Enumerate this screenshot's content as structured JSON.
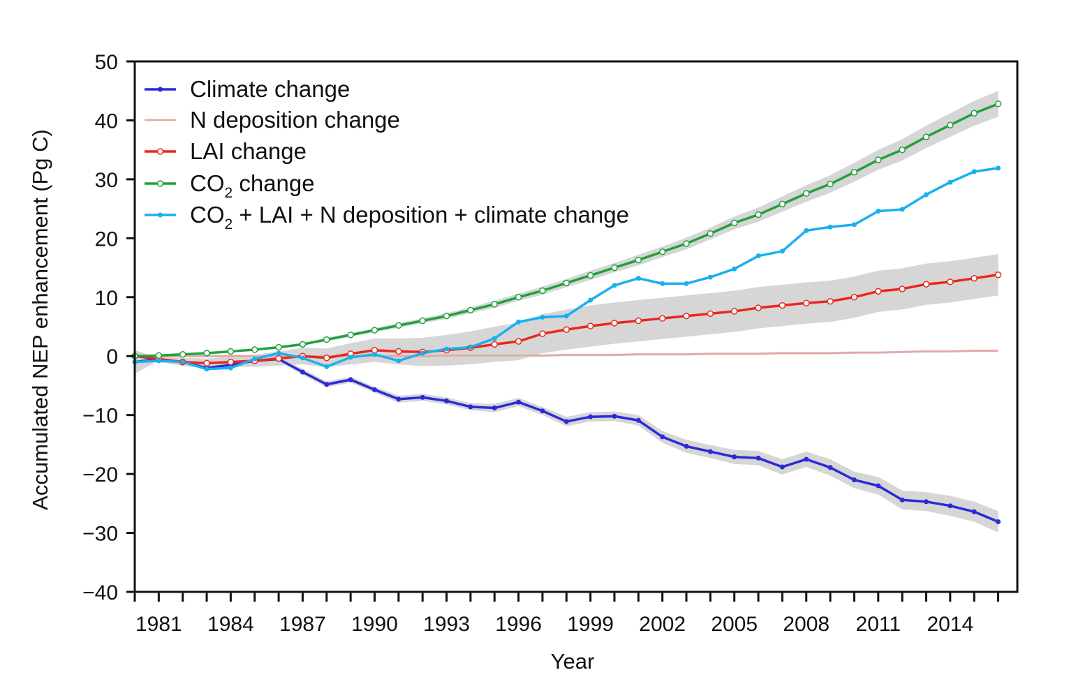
{
  "chart_data": {
    "type": "line",
    "xlabel": "Year",
    "ylabel": "Accumulated NEP enhancement (Pg C)",
    "xlim": [
      1980,
      2016.8
    ],
    "ylim": [
      -40,
      50
    ],
    "x_ticks": [
      1981,
      1984,
      1987,
      1990,
      1993,
      1996,
      1999,
      2002,
      2005,
      2008,
      2011,
      2014
    ],
    "y_ticks": [
      50,
      40,
      30,
      20,
      10,
      0,
      -10,
      -20,
      -30,
      -40
    ],
    "y_tick_labels": [
      "50",
      "40",
      "30",
      "20",
      "10",
      "0",
      "−10",
      "−20",
      "−30",
      "−40"
    ],
    "grid": false,
    "legend_position": "top-left",
    "x": [
      1980,
      1981,
      1982,
      1983,
      1984,
      1985,
      1986,
      1987,
      1988,
      1989,
      1990,
      1991,
      1992,
      1993,
      1994,
      1995,
      1996,
      1997,
      1998,
      1999,
      2000,
      2001,
      2002,
      2003,
      2004,
      2005,
      2006,
      2007,
      2008,
      2009,
      2010,
      2011,
      2012,
      2013,
      2014,
      2015,
      2016
    ],
    "series": [
      {
        "name": "Climate change",
        "color": "#2b2bd6",
        "marker": "dot",
        "values": [
          -1.0,
          -0.5,
          -1.0,
          -2.0,
          -1.5,
          -0.8,
          -0.5,
          -2.7,
          -4.8,
          -4.0,
          -5.7,
          -7.3,
          -7.0,
          -7.6,
          -8.6,
          -8.8,
          -7.8,
          -9.3,
          -11.1,
          -10.3,
          -10.2,
          -10.9,
          -13.7,
          -15.3,
          -16.2,
          -17.1,
          -17.3,
          -18.8,
          -17.5,
          -18.9,
          -21.0,
          -22.0,
          -24.4,
          -24.7,
          -25.4,
          -26.4,
          -28.1
        ],
        "band": [
          2.0,
          0.2,
          0.2,
          0.3,
          0.3,
          0.4,
          0.4,
          0.5,
          0.5,
          0.5,
          0.5,
          0.6,
          0.6,
          0.6,
          0.6,
          0.7,
          0.7,
          0.7,
          0.8,
          0.8,
          0.8,
          0.9,
          1.0,
          1.1,
          1.1,
          1.2,
          1.2,
          1.3,
          1.3,
          1.4,
          1.4,
          1.5,
          1.6,
          1.6,
          1.7,
          1.7,
          1.8
        ]
      },
      {
        "name": "N deposition change",
        "color": "#e6a6a6",
        "marker": "none",
        "values": [
          0.0,
          0.0,
          0.0,
          0.0,
          0.0,
          0.0,
          0.0,
          0.0,
          0.0,
          0.0,
          0.0,
          0.0,
          0.0,
          0.1,
          0.1,
          0.1,
          0.1,
          0.1,
          0.2,
          0.2,
          0.2,
          0.3,
          0.3,
          0.3,
          0.4,
          0.4,
          0.4,
          0.5,
          0.5,
          0.5,
          0.6,
          0.6,
          0.7,
          0.8,
          0.8,
          0.9,
          0.9
        ],
        "band": [
          0.2,
          0.2,
          0.2,
          0.2,
          0.2,
          0.2,
          0.2,
          0.2,
          0.2,
          0.2,
          0.2,
          0.2,
          0.2,
          0.2,
          0.2,
          0.2,
          0.2,
          0.2,
          0.2,
          0.2,
          0.2,
          0.2,
          0.2,
          0.2,
          0.2,
          0.2,
          0.2,
          0.2,
          0.2,
          0.2,
          0.2,
          0.2,
          0.2,
          0.2,
          0.2,
          0.2,
          0.2
        ]
      },
      {
        "name": "LAI change",
        "color": "#e8281e",
        "marker": "open-circle",
        "values": [
          0.0,
          -0.5,
          -1.0,
          -1.2,
          -1.0,
          -0.8,
          -0.4,
          0.0,
          -0.3,
          0.4,
          1.0,
          0.8,
          0.7,
          1.0,
          1.4,
          2.0,
          2.5,
          3.8,
          4.5,
          5.1,
          5.6,
          6.0,
          6.4,
          6.8,
          7.2,
          7.6,
          8.2,
          8.6,
          9.0,
          9.3,
          10.0,
          11.0,
          11.4,
          12.2,
          12.6,
          13.2,
          13.8
        ],
        "band": [
          0.3,
          0.5,
          0.7,
          0.8,
          0.9,
          1.0,
          1.2,
          1.4,
          1.6,
          1.8,
          2.0,
          2.2,
          2.4,
          2.6,
          2.8,
          3.0,
          3.2,
          3.3,
          3.4,
          3.5,
          3.5,
          3.5,
          3.5,
          3.5,
          3.5,
          3.5,
          3.5,
          3.5,
          3.5,
          3.5,
          3.5,
          3.5,
          3.5,
          3.5,
          3.5,
          3.5,
          3.5
        ]
      },
      {
        "name": "CO2 change",
        "color": "#22a03c",
        "marker": "open-circle",
        "values": [
          0.0,
          0.1,
          0.3,
          0.5,
          0.8,
          1.1,
          1.5,
          2.0,
          2.8,
          3.6,
          4.4,
          5.2,
          6.0,
          6.8,
          7.8,
          8.8,
          10.0,
          11.1,
          12.4,
          13.7,
          15.0,
          16.3,
          17.7,
          19.1,
          20.8,
          22.6,
          24.0,
          25.8,
          27.6,
          29.2,
          31.2,
          33.3,
          35.0,
          37.2,
          39.2,
          41.2,
          42.8
        ],
        "band": [
          0.1,
          0.1,
          0.1,
          0.1,
          0.1,
          0.2,
          0.2,
          0.2,
          0.3,
          0.3,
          0.3,
          0.4,
          0.4,
          0.5,
          0.5,
          0.6,
          0.6,
          0.7,
          0.7,
          0.8,
          0.8,
          0.9,
          0.9,
          1.0,
          1.0,
          1.1,
          1.2,
          1.3,
          1.4,
          1.5,
          1.6,
          1.7,
          1.8,
          1.9,
          2.0,
          2.1,
          2.2
        ]
      },
      {
        "name": "CO2 + LAI + N deposition + climate change",
        "color": "#1ab0ee",
        "marker": "dot",
        "values": [
          -1.0,
          -0.8,
          -1.0,
          -2.2,
          -2.0,
          -0.5,
          0.5,
          -0.3,
          -1.8,
          -0.2,
          0.3,
          -0.8,
          0.5,
          1.2,
          1.5,
          3.0,
          5.8,
          6.6,
          6.8,
          9.5,
          12.0,
          13.2,
          12.3,
          12.3,
          13.4,
          14.8,
          17.0,
          17.8,
          21.3,
          21.9,
          22.3,
          24.6,
          24.9,
          27.4,
          29.5,
          31.3,
          31.9
        ],
        "band": []
      }
    ]
  },
  "legend": {
    "items": [
      {
        "label": "Climate change",
        "color": "#2b2bd6",
        "marker": "dot"
      },
      {
        "label": "N deposition change",
        "color": "#e6a6a6",
        "marker": "none"
      },
      {
        "label": "LAI change",
        "color": "#e8281e",
        "marker": "open-circle"
      },
      {
        "label_main": "CO",
        "label_sub": "2",
        "label_rest": " change",
        "color": "#22a03c",
        "marker": "open-circle"
      },
      {
        "label_main": "CO",
        "label_sub": "2",
        "label_rest": " + LAI + N deposition + climate change",
        "color": "#1ab0ee",
        "marker": "dot"
      }
    ]
  },
  "colors": {
    "uncertainty_band": "#d6d6d6",
    "axis": "#111111"
  }
}
